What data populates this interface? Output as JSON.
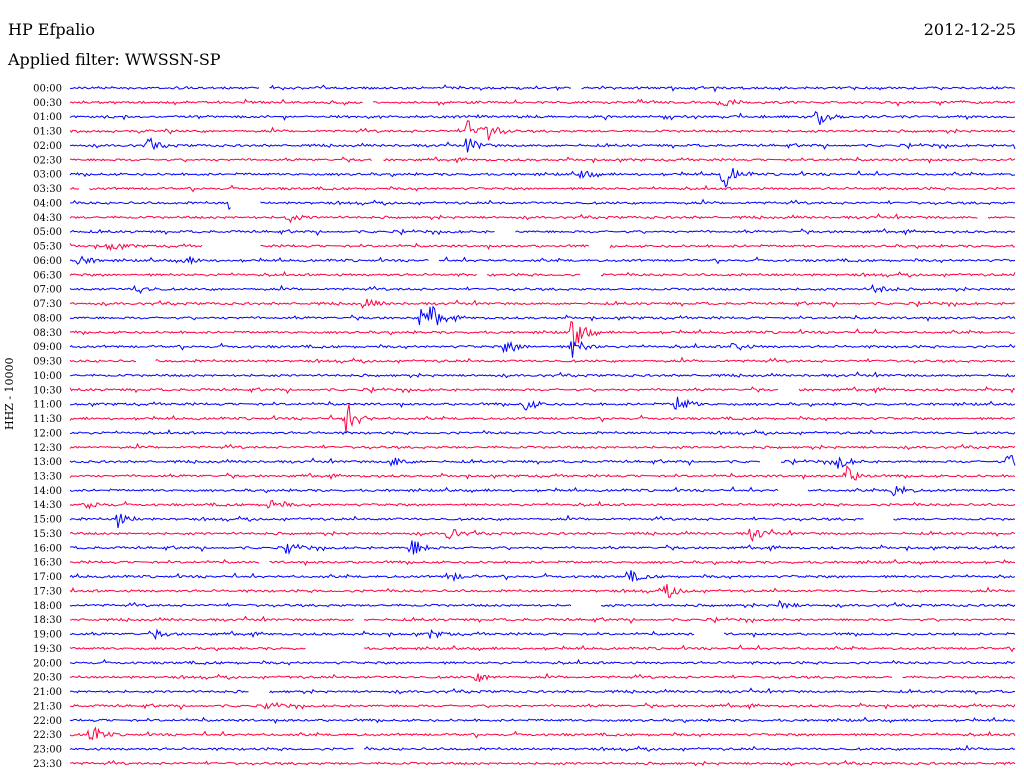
{
  "header": {
    "station": "HP Efpalio",
    "date": "2012-12-25",
    "filter": "Applied filter: WWSSN-SP",
    "side_label": "HHZ - 10000"
  },
  "colors": {
    "even_line": "#0000ff",
    "odd_line": "#ff0040"
  },
  "chart_data": {
    "type": "line",
    "title": "HP Efpalio",
    "subtitle": "Applied filter: WWSSN-SP",
    "ylabel": "HHZ - 10000",
    "tick_labels": [
      "00:00",
      "00:30",
      "01:00",
      "01:30",
      "02:00",
      "02:30",
      "03:00",
      "03:30",
      "04:00",
      "04:30",
      "05:00",
      "05:30",
      "06:00",
      "06:30",
      "07:00",
      "07:30",
      "08:00",
      "08:30",
      "09:00",
      "09:30",
      "10:00",
      "10:30",
      "11:00",
      "11:30",
      "12:00",
      "12:30",
      "13:00",
      "13:30",
      "14:00",
      "14:30",
      "15:00",
      "15:30",
      "16:00",
      "16:30",
      "17:00",
      "17:30",
      "18:00",
      "18:30",
      "19:00",
      "19:30",
      "20:00",
      "20:30",
      "21:00",
      "21:30",
      "22:00",
      "22:30",
      "23:00",
      "23:30"
    ],
    "line_colors": "alternating blue / red",
    "x_fraction_range": [
      0,
      1
    ],
    "events": [
      {
        "row": 1,
        "x": 0.69,
        "amp": 6
      },
      {
        "row": 2,
        "x": 0.79,
        "amp": 9
      },
      {
        "row": 3,
        "x": 0.42,
        "amp": 12
      },
      {
        "row": 3,
        "x": 0.44,
        "amp": 10
      },
      {
        "row": 4,
        "x": 0.08,
        "amp": 8
      },
      {
        "row": 4,
        "x": 0.42,
        "amp": 9
      },
      {
        "row": 4,
        "x": 1.0,
        "amp": 12
      },
      {
        "row": 6,
        "x": 0.54,
        "amp": 5
      },
      {
        "row": 6,
        "x": 0.69,
        "amp": 16
      },
      {
        "row": 8,
        "x": 0.17,
        "amp": 18
      },
      {
        "row": 9,
        "x": 0.23,
        "amp": 5
      },
      {
        "row": 11,
        "x": 0.04,
        "amp": 6
      },
      {
        "row": 12,
        "x": 0.01,
        "amp": 6
      },
      {
        "row": 12,
        "x": 0.12,
        "amp": 6
      },
      {
        "row": 14,
        "x": 0.07,
        "amp": 6
      },
      {
        "row": 14,
        "x": 0.85,
        "amp": 7
      },
      {
        "row": 15,
        "x": 0.31,
        "amp": 6
      },
      {
        "row": 16,
        "x": 0.37,
        "amp": 14
      },
      {
        "row": 16,
        "x": 0.38,
        "amp": 10
      },
      {
        "row": 17,
        "x": 0.53,
        "amp": 22
      },
      {
        "row": 18,
        "x": 0.46,
        "amp": 8
      },
      {
        "row": 18,
        "x": 0.53,
        "amp": 12
      },
      {
        "row": 18,
        "x": 0.7,
        "amp": 6
      },
      {
        "row": 22,
        "x": 0.48,
        "amp": 8
      },
      {
        "row": 22,
        "x": 0.64,
        "amp": 12
      },
      {
        "row": 23,
        "x": 0.29,
        "amp": 20
      },
      {
        "row": 26,
        "x": 0.34,
        "amp": 6
      },
      {
        "row": 26,
        "x": 0.81,
        "amp": 9
      },
      {
        "row": 26,
        "x": 0.99,
        "amp": 10
      },
      {
        "row": 27,
        "x": 0.82,
        "amp": 10
      },
      {
        "row": 28,
        "x": 0.87,
        "amp": 8
      },
      {
        "row": 29,
        "x": 0.02,
        "amp": 5
      },
      {
        "row": 29,
        "x": 0.21,
        "amp": 7
      },
      {
        "row": 30,
        "x": 0.05,
        "amp": 9
      },
      {
        "row": 31,
        "x": 0.4,
        "amp": 7
      },
      {
        "row": 31,
        "x": 0.72,
        "amp": 8
      },
      {
        "row": 32,
        "x": 0.23,
        "amp": 6
      },
      {
        "row": 32,
        "x": 0.36,
        "amp": 12
      },
      {
        "row": 34,
        "x": 0.4,
        "amp": 6
      },
      {
        "row": 34,
        "x": 0.59,
        "amp": 7
      },
      {
        "row": 35,
        "x": 0.63,
        "amp": 7
      },
      {
        "row": 36,
        "x": 0.75,
        "amp": 5
      },
      {
        "row": 38,
        "x": 0.09,
        "amp": 4
      },
      {
        "row": 38,
        "x": 0.38,
        "amp": 5
      },
      {
        "row": 41,
        "x": 0.43,
        "amp": 5
      },
      {
        "row": 43,
        "x": 0.21,
        "amp": 4
      },
      {
        "row": 45,
        "x": 0.02,
        "amp": 12
      }
    ],
    "gaps": [
      {
        "row": 0,
        "start": 0.2,
        "end": 0.21
      },
      {
        "row": 0,
        "start": 0.53,
        "end": 0.54
      },
      {
        "row": 1,
        "start": 0.31,
        "end": 0.32
      },
      {
        "row": 5,
        "start": 0.32,
        "end": 0.33
      },
      {
        "row": 7,
        "start": 0.01,
        "end": 0.02
      },
      {
        "row": 8,
        "start": 0.17,
        "end": 0.2
      },
      {
        "row": 9,
        "start": 0.96,
        "end": 0.97
      },
      {
        "row": 10,
        "start": 0.45,
        "end": 0.47
      },
      {
        "row": 11,
        "start": 0.14,
        "end": 0.2
      },
      {
        "row": 11,
        "start": 0.55,
        "end": 0.57
      },
      {
        "row": 12,
        "start": 0.38,
        "end": 0.39
      },
      {
        "row": 13,
        "start": 0.43,
        "end": 0.44
      },
      {
        "row": 13,
        "start": 0.54,
        "end": 0.56
      },
      {
        "row": 19,
        "start": 0.07,
        "end": 0.09
      },
      {
        "row": 21,
        "start": 0.75,
        "end": 0.77
      },
      {
        "row": 26,
        "start": 0.73,
        "end": 0.75
      },
      {
        "row": 28,
        "start": 0.75,
        "end": 0.78
      },
      {
        "row": 30,
        "start": 0.84,
        "end": 0.87
      },
      {
        "row": 33,
        "start": 0.2,
        "end": 0.21
      },
      {
        "row": 36,
        "start": 0.53,
        "end": 0.56
      },
      {
        "row": 37,
        "start": 0.3,
        "end": 0.31
      },
      {
        "row": 38,
        "start": 0.66,
        "end": 0.69
      },
      {
        "row": 39,
        "start": 0.25,
        "end": 0.31
      },
      {
        "row": 41,
        "start": 0.87,
        "end": 0.88
      },
      {
        "row": 42,
        "start": 0.19,
        "end": 0.21
      },
      {
        "row": 46,
        "start": 0.3,
        "end": 0.31
      }
    ]
  }
}
